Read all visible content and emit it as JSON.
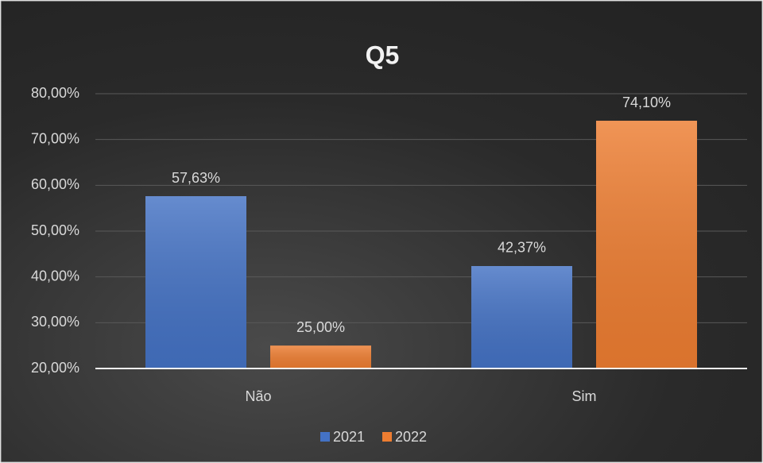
{
  "chart_data": {
    "type": "bar",
    "title": "Q5",
    "categories": [
      "Não",
      "Sim"
    ],
    "series": [
      {
        "name": "2021",
        "color": "#4472c4",
        "values": [
          57.63,
          42.37
        ],
        "value_labels": [
          "57,63%",
          "42,37%"
        ]
      },
      {
        "name": "2022",
        "color": "#ed7d31",
        "values": [
          25.0,
          74.1
        ],
        "value_labels": [
          "25,00%",
          "74,10%"
        ]
      }
    ],
    "ylim": [
      20,
      80
    ],
    "yticks": [
      {
        "value": 20,
        "label": "20,00%"
      },
      {
        "value": 30,
        "label": "30,00%"
      },
      {
        "value": 40,
        "label": "40,00%"
      },
      {
        "value": 50,
        "label": "50,00%"
      },
      {
        "value": 60,
        "label": "60,00%"
      },
      {
        "value": 70,
        "label": "70,00%"
      },
      {
        "value": 80,
        "label": "80,00%"
      }
    ],
    "grid": true,
    "legend": "bottom"
  }
}
